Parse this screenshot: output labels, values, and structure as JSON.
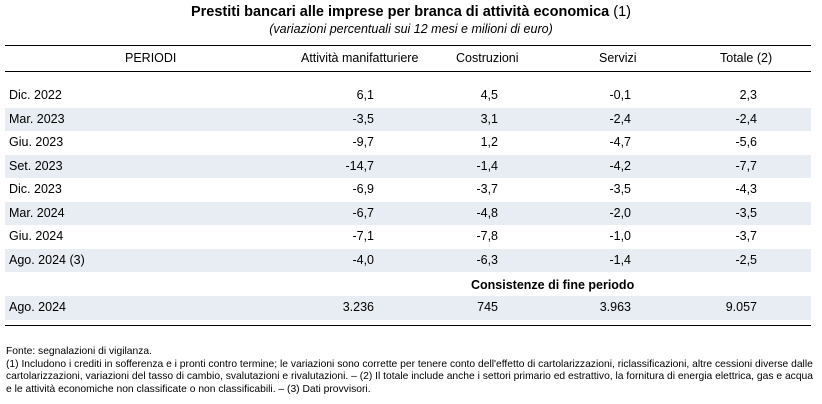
{
  "title": "Prestiti bancari alle imprese per branca di attività economica",
  "title_note": "(1)",
  "subtitle": "(variazioni percentuali sui 12 mesi e milioni di euro)",
  "columns": [
    "PERIODI",
    "Attività manifatturiere",
    "Costruzioni",
    "Servizi",
    "Totale (2)"
  ],
  "rows": [
    {
      "period": "Dic. 2022",
      "values": [
        "6,1",
        "4,5",
        "-0,1",
        "2,3"
      ]
    },
    {
      "period": "Mar. 2023",
      "values": [
        "-3,5",
        "3,1",
        "-2,4",
        "-2,4"
      ]
    },
    {
      "period": "Giu. 2023",
      "values": [
        "-9,7",
        "1,2",
        "-4,7",
        "-5,6"
      ]
    },
    {
      "period": "Set. 2023",
      "values": [
        "-14,7",
        "-1,4",
        "-4,2",
        "-7,7"
      ]
    },
    {
      "period": "Dic. 2023",
      "values": [
        "-6,9",
        "-3,7",
        "-3,5",
        "-4,3"
      ]
    },
    {
      "period": "Mar. 2024",
      "values": [
        "-6,7",
        "-4,8",
        "-2,0",
        "-3,5"
      ]
    },
    {
      "period": "Giu. 2024",
      "values": [
        "-7,1",
        "-7,8",
        "-1,0",
        "-3,7"
      ]
    },
    {
      "period": "Ago. 2024 (3)",
      "values": [
        "-4,0",
        "-6,3",
        "-1,4",
        "-2,5"
      ]
    }
  ],
  "section_heading": "Consistenze di fine periodo",
  "stock_row": {
    "period": "Ago. 2024",
    "values": [
      "3.236",
      "745",
      "3.963",
      "9.057"
    ]
  },
  "footnotes": [
    "Fonte: segnalazioni di vigilanza.",
    "(1) Includono i crediti in sofferenza e i pronti contro termine; le variazioni sono corrette per tenere conto dell'effetto di cartolarizzazioni, riclassificazioni, altre cessioni diverse dalle cartolarizzazioni, variazioni del tasso di cambio, svalutazioni e rivalutazioni. – (2) Il totale include anche i settori primario ed estrattivo, la fornitura di energia elettrica, gas e acqua e le attività economiche non classificate o non classificabili. – (3) Dati provvisori."
  ],
  "colors": {
    "shade": "#e8edf3",
    "text": "#000000"
  }
}
